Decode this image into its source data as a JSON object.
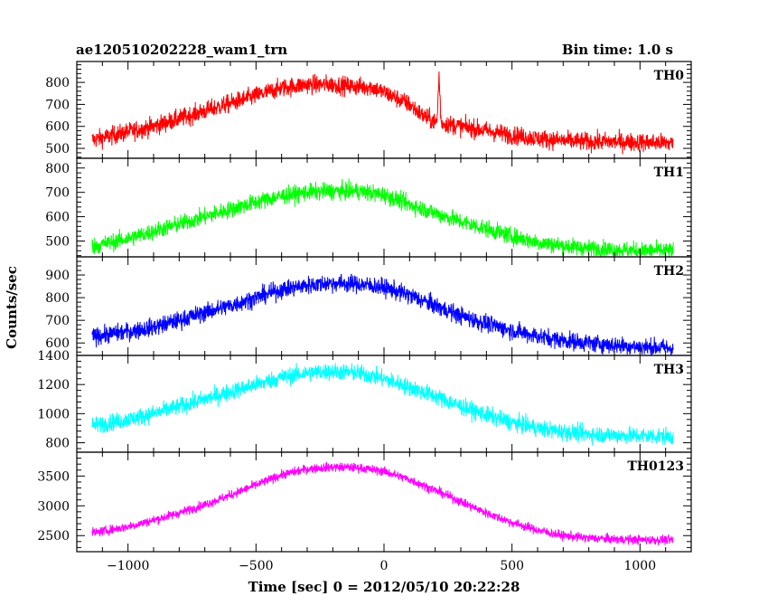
{
  "chart_data": {
    "type": "line",
    "title": "ae120510202228_wam1_trn",
    "subtitle": "Bin time: 1.0 s",
    "xlabel": "Time [sec] 0 = 2012/05/10 20:22:28",
    "ylabel": "Counts/sec",
    "xlim": [
      -1200,
      1200
    ],
    "xticks": [
      -1000,
      -500,
      0,
      500,
      1000
    ],
    "xtick_labels": [
      "−1000",
      "−500",
      "0",
      "500",
      "1000"
    ],
    "x_range": [
      -1140,
      1130
    ],
    "grid": false,
    "panels": [
      {
        "name": "TH0",
        "color": "#ff0000",
        "ylim": [
          455,
          895
        ],
        "yticks": [
          500,
          600,
          700,
          800
        ],
        "ytick_labels": [
          "500",
          "600",
          "700",
          "800"
        ],
        "noise": 30,
        "x": [
          -1130,
          -1000,
          -900,
          -800,
          -700,
          -600,
          -500,
          -400,
          -300,
          -200,
          -100,
          -50,
          0,
          100,
          150,
          200,
          300,
          400,
          500,
          600,
          700,
          800,
          900,
          1000,
          1120
        ],
        "y": [
          540,
          575,
          600,
          635,
          670,
          705,
          740,
          775,
          790,
          790,
          780,
          780,
          755,
          700,
          650,
          620,
          600,
          580,
          560,
          545,
          535,
          530,
          530,
          528,
          525
        ],
        "spike": {
          "x": 215,
          "y": 835
        }
      },
      {
        "name": "TH1",
        "color": "#00ff00",
        "ylim": [
          435,
          840
        ],
        "yticks": [
          500,
          600,
          700,
          800
        ],
        "ytick_labels": [
          "500",
          "600",
          "700",
          "800"
        ],
        "noise": 25,
        "x": [
          -1130,
          -1000,
          -900,
          -800,
          -700,
          -600,
          -500,
          -400,
          -300,
          -200,
          -100,
          0,
          100,
          200,
          300,
          400,
          500,
          600,
          700,
          800,
          900,
          1000,
          1120
        ],
        "y": [
          480,
          510,
          540,
          570,
          600,
          630,
          660,
          685,
          700,
          705,
          705,
          690,
          650,
          615,
          580,
          550,
          520,
          495,
          480,
          470,
          465,
          460,
          460
        ]
      },
      {
        "name": "TH2",
        "color": "#0000ff",
        "ylim": [
          545,
          980
        ],
        "yticks": [
          600,
          700,
          800,
          900
        ],
        "ytick_labels": [
          "600",
          "700",
          "800",
          "900"
        ],
        "noise": 28,
        "x": [
          -1130,
          -1000,
          -900,
          -800,
          -700,
          -600,
          -500,
          -400,
          -300,
          -200,
          -100,
          0,
          100,
          200,
          300,
          400,
          500,
          600,
          700,
          800,
          900,
          1000,
          1120
        ],
        "y": [
          630,
          650,
          670,
          700,
          735,
          765,
          800,
          835,
          855,
          865,
          860,
          845,
          810,
          765,
          720,
          685,
          655,
          630,
          612,
          600,
          590,
          583,
          578
        ]
      },
      {
        "name": "TH3",
        "color": "#00ffff",
        "ylim": [
          735,
          1400
        ],
        "yticks": [
          800,
          1000,
          1200,
          1400
        ],
        "ytick_labels": [
          "800",
          "1000",
          "1200",
          "1400"
        ],
        "noise": 42,
        "x": [
          -1130,
          -1000,
          -900,
          -800,
          -700,
          -600,
          -500,
          -400,
          -300,
          -200,
          -100,
          0,
          100,
          200,
          300,
          400,
          500,
          600,
          700,
          800,
          900,
          1000,
          1120
        ],
        "y": [
          920,
          960,
          1000,
          1050,
          1100,
          1150,
          1200,
          1250,
          1280,
          1290,
          1280,
          1240,
          1180,
          1120,
          1050,
          990,
          940,
          900,
          875,
          860,
          852,
          848,
          845
        ]
      },
      {
        "name": "TH0123",
        "color": "#ff00ff",
        "ylim": [
          2230,
          3900
        ],
        "yticks": [
          2500,
          3000,
          3500
        ],
        "ytick_labels": [
          "2500",
          "3000",
          "3500"
        ],
        "noise": 55,
        "x": [
          -1130,
          -1000,
          -900,
          -800,
          -700,
          -600,
          -500,
          -400,
          -300,
          -200,
          -100,
          0,
          100,
          200,
          300,
          400,
          500,
          600,
          700,
          800,
          900,
          1000,
          1120
        ],
        "y": [
          2550,
          2650,
          2760,
          2880,
          3020,
          3180,
          3350,
          3520,
          3620,
          3650,
          3640,
          3580,
          3440,
          3260,
          3070,
          2880,
          2720,
          2590,
          2500,
          2460,
          2440,
          2430,
          2425
        ]
      }
    ]
  }
}
